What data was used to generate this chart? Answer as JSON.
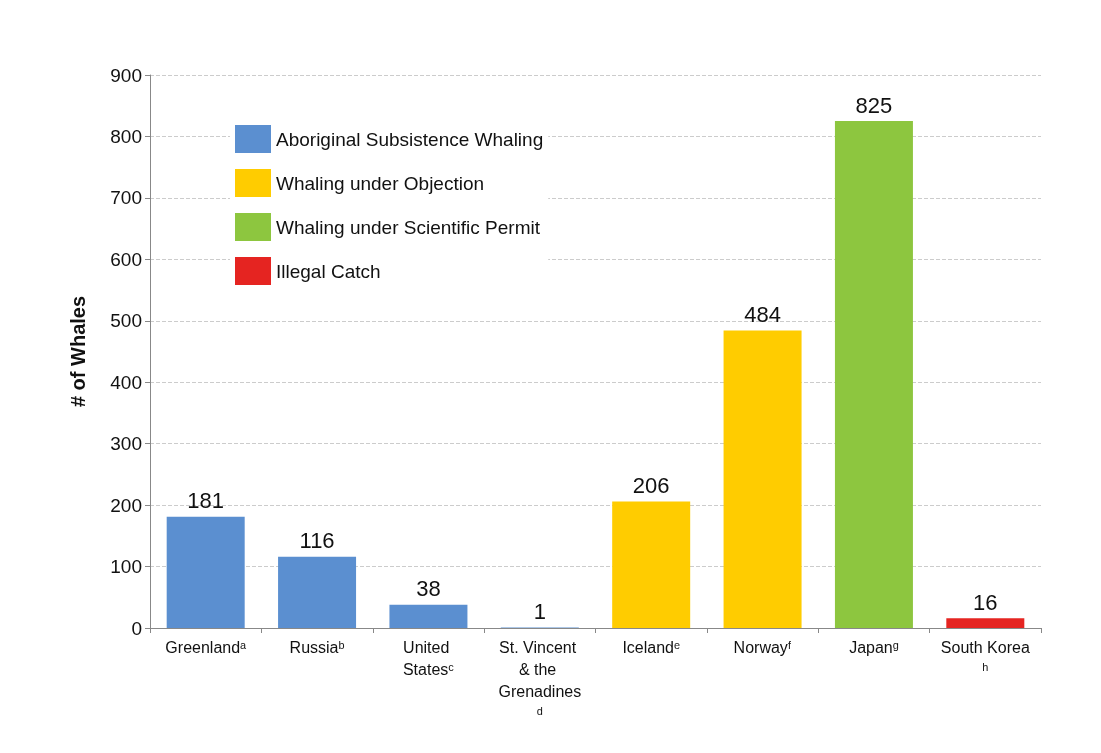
{
  "chart_data": {
    "type": "bar",
    "ylabel": "# of Whales",
    "categories": [
      "Greenlandᵃ",
      "Russiaᵇ",
      "United Statesᶜ",
      "St. Vincent & the Grenadinesᵈ",
      "Icelandᵉ",
      "Norwayᶠ",
      "Japanᵍ",
      "South Koreaʰ"
    ],
    "series": [
      {
        "name": "Aboriginal Subsistence Whaling",
        "color": "#5b8fd0",
        "values": [
          181,
          116,
          38,
          1,
          null,
          null,
          null,
          null
        ]
      },
      {
        "name": "Whaling under Objection",
        "color": "#ffcc00",
        "values": [
          null,
          null,
          null,
          null,
          206,
          484,
          null,
          null
        ]
      },
      {
        "name": "Whaling under Scientific Permit",
        "color": "#8dc63f",
        "values": [
          null,
          null,
          null,
          null,
          null,
          null,
          825,
          null
        ]
      },
      {
        "name": "Illegal Catch",
        "color": "#e52421",
        "values": [
          null,
          null,
          null,
          null,
          null,
          null,
          null,
          16
        ]
      }
    ],
    "ylim": [
      0,
      900
    ],
    "yticks": [
      0,
      100,
      200,
      300,
      400,
      500,
      600,
      700,
      800,
      900
    ],
    "grid": "y",
    "legend": "top left",
    "data_labels": true
  }
}
